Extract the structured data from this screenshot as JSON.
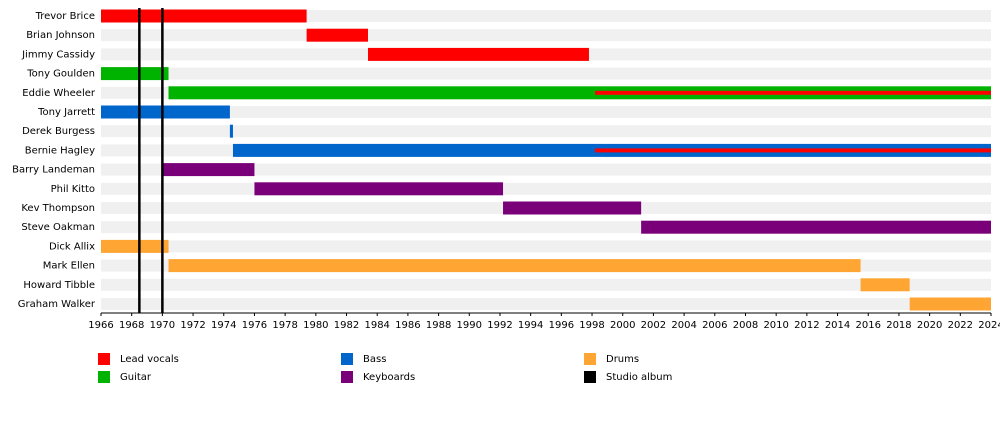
{
  "chart_data": {
    "type": "timeline",
    "categories": [
      "Trevor Brice",
      "Brian Johnson",
      "Jimmy Cassidy",
      "Tony Goulden",
      "Eddie Wheeler",
      "Tony Jarrett",
      "Derek Burgess",
      "Bernie Hagley",
      "Barry Landeman",
      "Phil Kitto",
      "Kev Thompson",
      "Steve Oakman",
      "Dick Allix",
      "Mark Ellen",
      "Howard Tibble",
      "Graham Walker"
    ],
    "series": [
      {
        "name": "Lead vocals",
        "color": "#ff0000",
        "start": [
          1966,
          1979.4,
          1983.4,
          null,
          1998.2,
          null,
          null,
          1998.2,
          null,
          null,
          null,
          null,
          null,
          null,
          null,
          null
        ],
        "end": [
          1979.4,
          1983.4,
          1997.8,
          null,
          2024,
          null,
          null,
          2024,
          null,
          null,
          null,
          null,
          null,
          null,
          null,
          null
        ]
      },
      {
        "name": "Guitar",
        "color": "#00b300",
        "start": [
          null,
          null,
          null,
          1966,
          1970.4,
          null,
          null,
          null,
          null,
          null,
          null,
          null,
          null,
          null,
          null,
          null
        ],
        "end": [
          null,
          null,
          null,
          1970.4,
          2024,
          null,
          null,
          null,
          null,
          null,
          null,
          null,
          null,
          null,
          null,
          null
        ]
      },
      {
        "name": "Bass",
        "color": "#0066cc",
        "start": [
          null,
          null,
          null,
          null,
          null,
          1966,
          1974.4,
          1974.6,
          null,
          null,
          null,
          null,
          null,
          null,
          null,
          null
        ],
        "end": [
          null,
          null,
          null,
          null,
          null,
          1974.4,
          1974.6,
          2024,
          null,
          null,
          null,
          null,
          null,
          null,
          null,
          null
        ]
      },
      {
        "name": "Keyboards",
        "color": "#7a007a",
        "start": [
          null,
          null,
          null,
          null,
          null,
          null,
          null,
          null,
          1970.0,
          1976.0,
          1992.2,
          2001.2,
          null,
          null,
          null,
          null
        ],
        "end": [
          null,
          null,
          null,
          null,
          null,
          null,
          null,
          null,
          1976.0,
          1992.2,
          2001.2,
          2024,
          null,
          null,
          null,
          null
        ]
      },
      {
        "name": "Drums",
        "color": "#ffa533",
        "start": [
          null,
          null,
          null,
          null,
          null,
          null,
          null,
          null,
          null,
          null,
          null,
          null,
          1966,
          1970.4,
          2015.5,
          2018.7
        ],
        "end": [
          null,
          null,
          null,
          null,
          null,
          null,
          null,
          null,
          null,
          null,
          null,
          null,
          1970.4,
          2015.5,
          2018.7,
          2024
        ]
      }
    ],
    "markers": {
      "name": "Studio album",
      "color": "#000000",
      "values": [
        1968.5,
        1970.0
      ]
    },
    "xlim": [
      1966,
      2024
    ],
    "xticks": [
      1966,
      1968,
      1970,
      1972,
      1974,
      1976,
      1978,
      1980,
      1982,
      1984,
      1986,
      1988,
      1990,
      1992,
      1994,
      1996,
      1998,
      2000,
      2002,
      2004,
      2006,
      2008,
      2010,
      2012,
      2014,
      2016,
      2018,
      2020,
      2022,
      2024
    ]
  }
}
